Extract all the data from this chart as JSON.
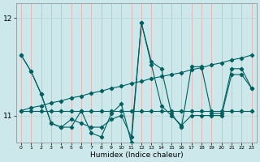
{
  "xlabel": "Humidex (Indice chaleur)",
  "bg_color": "#cce8ea",
  "grid_color_v": "#e8b0b0",
  "grid_color_h": "#b8d8da",
  "line_color": "#006060",
  "xlim": [
    -0.5,
    23.5
  ],
  "ylim": [
    10.72,
    12.15
  ],
  "yticks": [
    11,
    12
  ],
  "xticks": [
    0,
    1,
    2,
    3,
    4,
    5,
    6,
    7,
    8,
    9,
    10,
    11,
    12,
    13,
    14,
    15,
    16,
    17,
    18,
    19,
    20,
    21,
    22,
    23
  ],
  "series": [
    {
      "x": [
        0,
        1,
        2,
        3,
        4,
        5,
        6,
        7,
        8,
        9,
        10,
        11,
        12,
        13,
        14,
        15,
        16,
        17,
        18,
        19,
        20,
        21,
        22,
        23
      ],
      "y": [
        11.62,
        11.45,
        11.22,
        10.92,
        10.88,
        10.96,
        10.92,
        10.88,
        10.88,
        10.96,
        11.0,
        10.78,
        11.95,
        11.52,
        11.1,
        11.0,
        10.9,
        11.0,
        11.0,
        11.0,
        11.0,
        11.42,
        11.42,
        11.28
      ]
    },
    {
      "x": [
        0,
        1,
        2,
        3,
        4,
        5,
        6,
        7,
        8,
        9,
        10,
        11,
        12,
        13,
        14,
        15,
        16,
        17,
        18,
        19,
        20,
        21,
        22,
        23
      ],
      "y": [
        11.05,
        11.08,
        11.1,
        11.13,
        11.15,
        11.18,
        11.2,
        11.23,
        11.25,
        11.28,
        11.3,
        11.33,
        11.35,
        11.38,
        11.4,
        11.42,
        11.44,
        11.47,
        11.49,
        11.52,
        11.54,
        11.57,
        11.59,
        11.62
      ]
    },
    {
      "x": [
        0,
        1,
        2,
        3,
        4,
        5,
        6,
        7,
        8,
        9,
        10,
        11,
        12,
        13,
        14,
        15,
        16,
        17,
        18,
        19,
        20,
        21,
        22,
        23
      ],
      "y": [
        11.05,
        11.05,
        11.05,
        11.05,
        11.05,
        11.05,
        11.05,
        11.05,
        11.05,
        11.05,
        11.05,
        11.05,
        11.05,
        11.05,
        11.05,
        11.05,
        11.05,
        11.05,
        11.05,
        11.05,
        11.05,
        11.05,
        11.05,
        11.05
      ]
    },
    {
      "x": [
        0,
        1,
        2,
        3,
        4,
        5,
        6,
        7,
        8,
        9,
        10,
        11,
        12,
        13,
        14,
        15,
        16,
        17,
        18,
        19,
        20,
        21,
        22,
        23
      ],
      "y": [
        11.62,
        11.45,
        11.22,
        10.92,
        10.88,
        10.88,
        11.05,
        10.82,
        10.78,
        11.02,
        11.12,
        10.72,
        11.95,
        11.55,
        11.48,
        11.02,
        10.88,
        11.5,
        11.5,
        11.02,
        11.02,
        11.48,
        11.48,
        11.28
      ]
    }
  ]
}
